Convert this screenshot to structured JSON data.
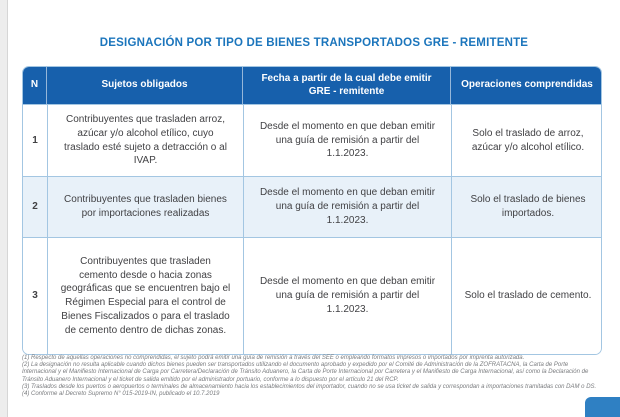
{
  "page": {
    "title": "DESIGNACIÓN POR TIPO DE BIENES TRANSPORTADOS GRE - REMITENTE"
  },
  "table": {
    "columns": [
      "N",
      "Sujetos obligados",
      "Fecha a partir de la cual debe emitir GRE - remitente",
      "Operaciones comprendidas"
    ],
    "rows": [
      {
        "n": "1",
        "sujetos": "Contribuyentes que trasladen arroz, azúcar y/o alcohol etílico, cuyo traslado esté sujeto a detracción o al IVAP.",
        "fecha": "Desde el momento en que deban emitir una guía de remisión a partir del 1.1.2023.",
        "operaciones": "Solo el traslado de arroz, azúcar y/o alcohol etílico."
      },
      {
        "n": "2",
        "sujetos": "Contribuyentes que trasladen bienes por importaciones realizadas",
        "fecha": "Desde el momento en que deban emitir una guía de remisión a partir del 1.1.2023.",
        "operaciones": "Solo el traslado de bienes importados."
      },
      {
        "n": "3",
        "sujetos": "Contribuyentes que trasladen cemento desde o hacia zonas geográficas que se encuentren bajo el Régimen Especial para el control de Bienes Fiscalizados o para el traslado de cemento dentro de dichas zonas.",
        "fecha": "Desde el momento en que deban emitir una guía de remisión a partir del 1.1.2023.",
        "operaciones": "Solo el traslado de cemento."
      }
    ]
  },
  "footnotes": [
    "(1) Respecto de aquellas operaciones no comprendidas, el sujeto podrá emitir una guía de remisión a través del SEE o empleando formatos impresos o importados por imprenta autorizada.",
    "(2) La designación no resulta aplicable cuando dichos bienes pueden ser transportados utilizando el documento aprobado y expedido por el Comité de Administración de la ZOFRATACNA, la Carta de Porte Internacional y el Manifiesto Internacional de Carga por Carretera/Declaración de Tránsito Aduanero, la Carta de Porte Internacional por Carretera y el Manifiesto de Carga Internacional, así como la Declaración de Tránsito Aduanero Internacional y el ticket de salida emitido por el administrador portuario, conforme a lo dispuesto por el artículo 21 del RCP.",
    "(3) Traslados desde los puertos o aeropuertos o terminales de almacenamiento hacia los establecimientos del importador, cuando no se usa ticket de salida y correspondan a importaciones tramitadas con DAM o DS.",
    "(4) Conforme al Decreto Supremo N° 015-2019-IN, publicado el 10.7.2019"
  ],
  "colors": {
    "title_blue": "#1b75bc",
    "header_blue": "#1760ac",
    "row_alt_blue": "#e8f1f9",
    "border_blue": "#a3c6e2",
    "body_text": "#414144",
    "footnote_gray": "#797b7e",
    "corner_accent": "#2f80c3"
  }
}
